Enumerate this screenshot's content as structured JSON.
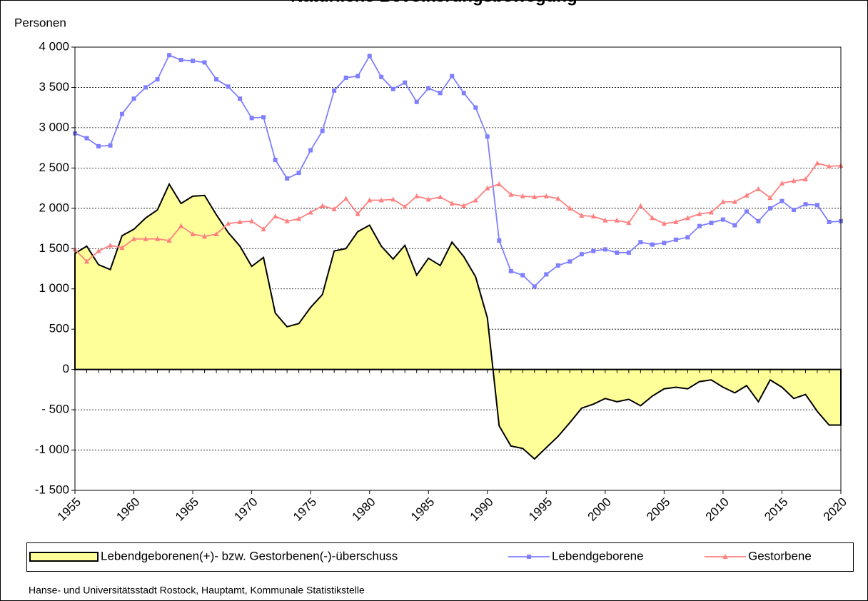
{
  "chart_data": {
    "type": "area-line",
    "title": "Natürliche Bevölkerungsbewegung",
    "y_label": "Personen",
    "source": "Hanse- und Universitätsstadt Rostock, Hauptamt, Kommunale Statistikstelle",
    "x": [
      1955,
      1956,
      1957,
      1958,
      1959,
      1960,
      1961,
      1962,
      1963,
      1964,
      1965,
      1966,
      1967,
      1968,
      1969,
      1970,
      1971,
      1972,
      1973,
      1974,
      1975,
      1976,
      1977,
      1978,
      1979,
      1980,
      1981,
      1982,
      1983,
      1984,
      1985,
      1986,
      1987,
      1988,
      1989,
      1990,
      1991,
      1992,
      1993,
      1994,
      1995,
      1996,
      1997,
      1998,
      1999,
      2000,
      2001,
      2002,
      2003,
      2004,
      2005,
      2006,
      2007,
      2008,
      2009,
      2010,
      2011,
      2012,
      2013,
      2014,
      2015,
      2016,
      2017,
      2018,
      2019,
      2020
    ],
    "xlim": [
      1955,
      2020
    ],
    "xticks": [
      1955,
      1960,
      1965,
      1970,
      1975,
      1980,
      1985,
      1990,
      1995,
      2000,
      2005,
      2010,
      2015,
      2020
    ],
    "ylim": [
      -1500,
      4000
    ],
    "yticks": [
      {
        "value": -1500,
        "label": "-1 500"
      },
      {
        "value": -1000,
        "label": "-1 000"
      },
      {
        "value": -500,
        "label": "- 500"
      },
      0,
      500,
      {
        "value": 1000,
        "label": "1 000"
      },
      {
        "value": 1500,
        "label": "1 500"
      },
      {
        "value": 2000,
        "label": "2 000"
      },
      {
        "value": 2500,
        "label": "2 500"
      },
      {
        "value": 3000,
        "label": "3 000"
      },
      {
        "value": 3500,
        "label": "3 500"
      },
      {
        "value": 4000,
        "label": "4 000"
      }
    ],
    "grid": true,
    "legend": "bottom",
    "series": [
      {
        "name": "Lebendgeborenen(+)- bzw. Gestorbenen(-)-überschuss",
        "kind": "area",
        "color": "#ffff99",
        "values": [
          1440,
          1530,
          1300,
          1240,
          1660,
          1740,
          1880,
          1980,
          2300,
          2060,
          2150,
          2160,
          1920,
          1700,
          1530,
          1280,
          1390,
          700,
          530,
          570,
          770,
          930,
          1470,
          1500,
          1710,
          1790,
          1530,
          1370,
          1540,
          1170,
          1380,
          1290,
          1580,
          1400,
          1150,
          640,
          -700,
          -950,
          -980,
          -1110,
          -970,
          -830,
          -660,
          -480,
          -430,
          -360,
          -400,
          -370,
          -450,
          -330,
          -240,
          -220,
          -240,
          -150,
          -130,
          -220,
          -290,
          -200,
          -400,
          -130,
          -220,
          -360,
          -310,
          -520,
          -690,
          -690
        ]
      },
      {
        "name": "Lebendgeborene",
        "kind": "line",
        "marker": "square",
        "color": "#7f7fff",
        "values": [
          2930,
          2870,
          2770,
          2780,
          3170,
          3360,
          3500,
          3600,
          3900,
          3840,
          3830,
          3810,
          3600,
          3510,
          3360,
          3120,
          3130,
          2600,
          2370,
          2440,
          2720,
          2960,
          3460,
          3620,
          3640,
          3890,
          3630,
          3480,
          3560,
          3320,
          3490,
          3430,
          3640,
          3430,
          3250,
          2890,
          1600,
          1220,
          1170,
          1030,
          1180,
          1290,
          1340,
          1430,
          1470,
          1490,
          1450,
          1450,
          1580,
          1550,
          1570,
          1610,
          1640,
          1780,
          1820,
          1860,
          1790,
          1960,
          1840,
          2000,
          2090,
          1980,
          2050,
          2040,
          1830,
          1840
        ]
      },
      {
        "name": "Gestorbene",
        "kind": "line",
        "marker": "triangle",
        "color": "#ff8080",
        "values": [
          1490,
          1340,
          1470,
          1540,
          1510,
          1620,
          1620,
          1620,
          1600,
          1780,
          1680,
          1650,
          1680,
          1810,
          1830,
          1840,
          1740,
          1900,
          1840,
          1870,
          1950,
          2030,
          1990,
          2120,
          1930,
          2100,
          2100,
          2110,
          2020,
          2150,
          2110,
          2140,
          2060,
          2030,
          2100,
          2250,
          2300,
          2170,
          2150,
          2140,
          2150,
          2120,
          2000,
          1910,
          1900,
          1850,
          1850,
          1820,
          2030,
          1880,
          1810,
          1830,
          1880,
          1930,
          1950,
          2080,
          2080,
          2160,
          2240,
          2130,
          2310,
          2340,
          2360,
          2560,
          2520,
          2530
        ]
      }
    ]
  }
}
